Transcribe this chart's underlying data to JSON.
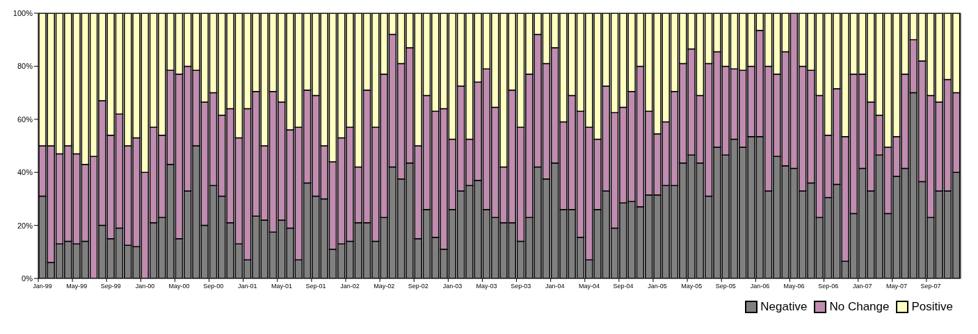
{
  "chart_data": {
    "type": "bar",
    "stacked": true,
    "categories": [
      "Jan-99",
      null,
      null,
      null,
      "May-99",
      null,
      null,
      null,
      "Sep-99",
      null,
      null,
      null,
      "Jan-00",
      null,
      null,
      null,
      "May-00",
      null,
      null,
      null,
      "Sep-00",
      null,
      null,
      null,
      "Jan-01",
      null,
      null,
      null,
      "May-01",
      null,
      null,
      null,
      "Sep-01",
      null,
      null,
      null,
      "Jan-02",
      null,
      null,
      null,
      "May-02",
      null,
      null,
      null,
      "Sep-02",
      null,
      null,
      null,
      "Jan-03",
      null,
      null,
      null,
      "May-03",
      null,
      null,
      null,
      "Sep-03",
      null,
      null,
      null,
      "Jan-04",
      null,
      null,
      null,
      "May-04",
      null,
      null,
      null,
      "Sep-04",
      null,
      null,
      null,
      "Jan-05",
      null,
      null,
      null,
      "May-05",
      null,
      null,
      null,
      "Sep-05",
      null,
      null,
      null,
      "Jan-06",
      null,
      null,
      null,
      "May-06",
      null,
      null,
      null,
      "Sep-06",
      null,
      null,
      null,
      "Jan-07",
      null,
      null,
      null,
      "May-07",
      null,
      null,
      null,
      "Sep-07",
      null,
      null,
      null
    ],
    "series": [
      {
        "name": "Negative",
        "color": "#808080",
        "values": [
          31,
          6,
          13,
          14,
          13,
          14,
          0,
          20,
          15,
          19,
          12.5,
          12,
          0,
          21,
          23,
          43,
          15,
          33,
          50,
          20,
          35,
          31,
          21,
          13,
          7,
          23.5,
          22,
          17.5,
          22,
          19,
          7,
          36,
          31,
          30,
          11,
          13,
          14,
          21,
          21,
          14,
          23,
          42,
          37.5,
          43.5,
          15,
          26,
          15.5,
          11,
          26,
          33,
          35,
          37,
          26,
          23,
          21,
          21,
          14,
          23,
          42,
          37.5,
          43.5,
          26,
          26,
          15.5,
          7,
          26,
          33,
          19,
          28.5,
          29,
          27,
          31.5,
          31.5,
          35,
          35,
          43.5,
          46.5,
          43.5,
          31,
          49.5,
          46.5,
          52.5,
          49.5,
          53.5,
          53.5,
          33,
          46,
          42.5,
          41.5,
          33,
          36,
          23,
          30.5,
          35.5,
          6.5,
          24.5,
          41.5,
          33,
          46.5,
          24.5,
          38.5,
          41.5,
          70,
          36.5,
          23,
          33,
          33,
          40
        ]
      },
      {
        "name": "No Change",
        "color": "#c08caf",
        "values": [
          19,
          44,
          34,
          36,
          34,
          29,
          46,
          47,
          39,
          43,
          37.5,
          41,
          40,
          36,
          31,
          35.5,
          62,
          47,
          28.5,
          46.5,
          35,
          30.5,
          43,
          40,
          57,
          47,
          28,
          53,
          44.5,
          37,
          50,
          35,
          38,
          20,
          33,
          40,
          43,
          21,
          50,
          43,
          54,
          50,
          43.5,
          43.5,
          35,
          43,
          47.5,
          53,
          26.5,
          39.5,
          17.5,
          37,
          53,
          41.5,
          21,
          50,
          43,
          54,
          50,
          43.5,
          43.5,
          33,
          43,
          47.5,
          50,
          26.5,
          39.5,
          43.5,
          36,
          41.5,
          53,
          31.5,
          23,
          24,
          35.5,
          37.5,
          40,
          25.5,
          50,
          36,
          33.5,
          26.5,
          29,
          26.5,
          40,
          47,
          31,
          43,
          58.5,
          47,
          42.5,
          46,
          23.5,
          36,
          47,
          52.5,
          35.5,
          33.5,
          15,
          25,
          15,
          35.5,
          20,
          45.5,
          46,
          33.5,
          42,
          30
        ]
      },
      {
        "name": "Positive",
        "color": "#ffffc0",
        "values": [
          50,
          50,
          53,
          50,
          53,
          57,
          54,
          33,
          46,
          38,
          50,
          47,
          60,
          43,
          46,
          21.5,
          23,
          20,
          21.5,
          33.5,
          30,
          38.5,
          36,
          47,
          36,
          29.5,
          50,
          29.5,
          33.5,
          44,
          43,
          29,
          31,
          50,
          56,
          47,
          43,
          58,
          29,
          43,
          23,
          8,
          19,
          13,
          50,
          31,
          37,
          36,
          47.5,
          27.5,
          47.5,
          26,
          21,
          35.5,
          58,
          29,
          43,
          23,
          8,
          19,
          13,
          41,
          31,
          37,
          43,
          47.5,
          27.5,
          37.5,
          35.5,
          29.5,
          20,
          37,
          45.5,
          41,
          29.5,
          19,
          13.5,
          31,
          19,
          14.5,
          20,
          21,
          21.5,
          20,
          6.5,
          20,
          23,
          14.5,
          0,
          20,
          21.5,
          31,
          46,
          28.5,
          46.5,
          23,
          23,
          33.5,
          38.5,
          50.5,
          46.5,
          23,
          10,
          18,
          31,
          33.5,
          25,
          30
        ]
      }
    ],
    "ylim": [
      0,
      100
    ],
    "yticks": [
      {
        "value": 0,
        "label": "0%"
      },
      {
        "value": 20,
        "label": "20%"
      },
      {
        "value": 40,
        "label": "40%"
      },
      {
        "value": 60,
        "label": "60%"
      },
      {
        "value": 80,
        "label": "80%"
      },
      {
        "value": 100,
        "label": "100%"
      }
    ],
    "legend": "bottom right"
  }
}
